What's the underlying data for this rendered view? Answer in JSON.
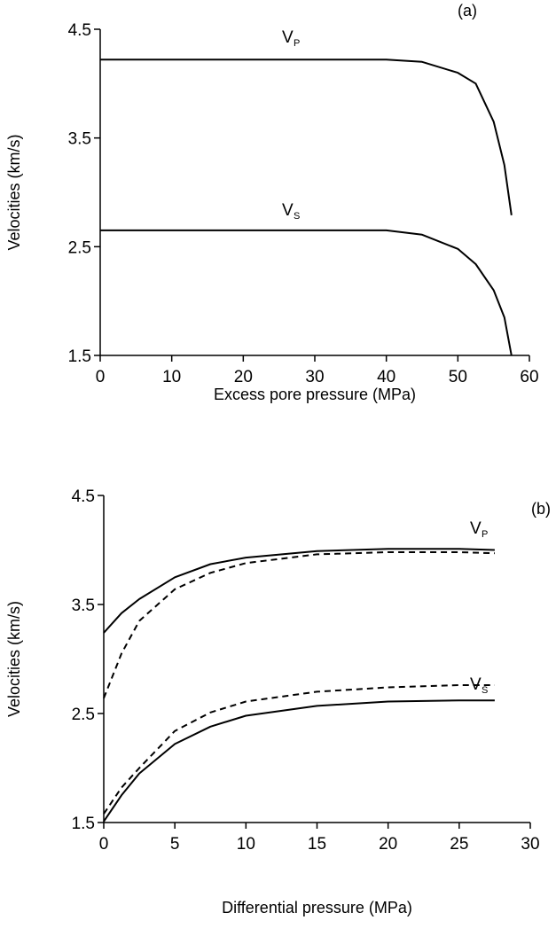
{
  "chart_data": [
    {
      "type": "line",
      "title": "(a)",
      "xlabel": "Excess pore pressure (MPa)",
      "ylabel": "Velocities (km/s)",
      "x": [
        0,
        5,
        10,
        15,
        20,
        25,
        30,
        35,
        40,
        45,
        50,
        52.5,
        55,
        56.5,
        57.5
      ],
      "series": [
        {
          "color": "#000000",
          "dash": false,
          "values": [
            4.22,
            4.22,
            4.22,
            4.22,
            4.22,
            4.22,
            4.22,
            4.22,
            4.22,
            4.2,
            4.1,
            4.0,
            3.65,
            3.25,
            2.79
          ]
        },
        {
          "color": "#000000",
          "dash": false,
          "values": [
            2.65,
            2.65,
            2.65,
            2.65,
            2.65,
            2.65,
            2.65,
            2.65,
            2.65,
            2.61,
            2.48,
            2.34,
            2.1,
            1.85,
            1.5
          ]
        }
      ],
      "annotations": [
        {
          "text": "V",
          "sub": "P"
        },
        {
          "text": "V",
          "sub": "S"
        }
      ],
      "xlim": [
        0,
        60
      ],
      "xticks": [
        0,
        10,
        20,
        30,
        40,
        50,
        60
      ],
      "ylim": [
        1.5,
        4.5
      ],
      "yticks": [
        1.5,
        2.5,
        3.5,
        4.5
      ]
    },
    {
      "type": "line",
      "title": "(b)",
      "xlabel": "Differential pressure (MPa)",
      "ylabel": "Velocities (km/s)",
      "x": [
        0,
        1.25,
        2.5,
        5,
        7.5,
        10,
        15,
        20,
        25,
        27.5
      ],
      "series": [
        {
          "color": "#000000",
          "dash": false,
          "values": [
            3.24,
            3.42,
            3.55,
            3.75,
            3.87,
            3.93,
            3.99,
            4.01,
            4.01,
            4.0
          ]
        },
        {
          "color": "#000000",
          "dash": true,
          "values": [
            2.64,
            3.05,
            3.35,
            3.64,
            3.79,
            3.88,
            3.96,
            3.98,
            3.98,
            3.97
          ]
        },
        {
          "color": "#000000",
          "dash": false,
          "values": [
            1.51,
            1.75,
            1.95,
            2.22,
            2.38,
            2.48,
            2.57,
            2.61,
            2.62,
            2.62
          ]
        },
        {
          "color": "#000000",
          "dash": true,
          "values": [
            1.58,
            1.82,
            2.0,
            2.34,
            2.51,
            2.61,
            2.7,
            2.74,
            2.76,
            2.76
          ]
        }
      ],
      "annotations": [
        {
          "text": "V",
          "sub": "P"
        },
        {
          "text": "V",
          "sub": "S"
        }
      ],
      "xlim": [
        0,
        30
      ],
      "xticks": [
        0,
        5,
        10,
        15,
        20,
        25,
        30
      ],
      "ylim": [
        1.5,
        4.5
      ],
      "yticks": [
        1.5,
        2.5,
        3.5,
        4.5
      ]
    }
  ]
}
